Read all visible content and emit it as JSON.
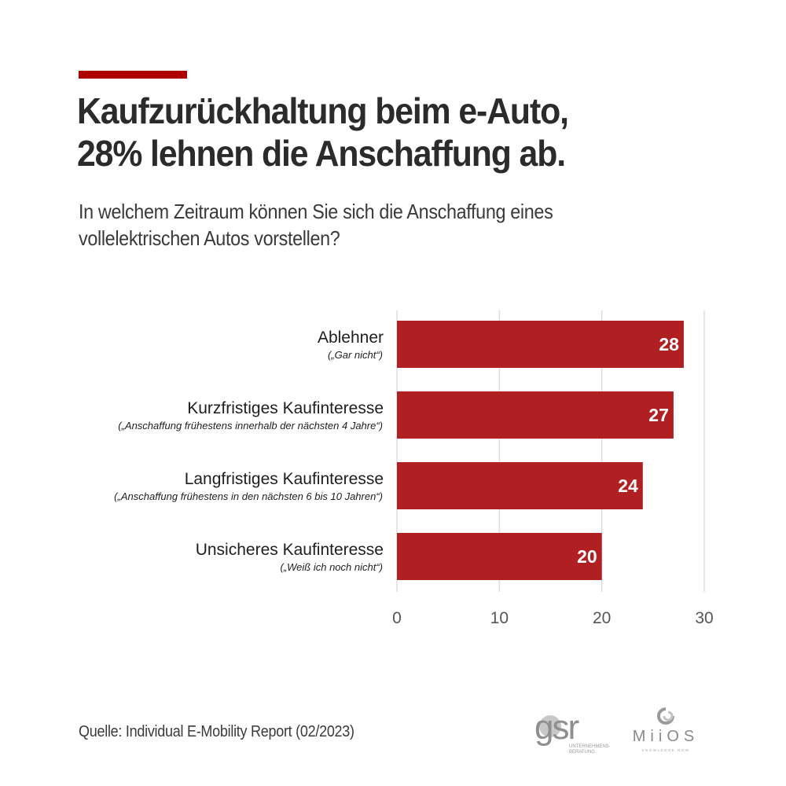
{
  "header": {
    "title_line1": "Kaufzurückhaltung beim e-Auto,",
    "title_line2": "28% lehnen die Anschaffung ab.",
    "subtitle_line1": "In welchem Zeitraum können Sie sich die Anschaffung eines",
    "subtitle_line2": "vollelektrischen Autos vorstellen?",
    "accent_color": "#ad0000"
  },
  "chart_data": {
    "type": "bar",
    "orientation": "horizontal",
    "title": "Kaufzurückhaltung beim e-Auto, 28% lehnen die Anschaffung ab.",
    "subtitle": "In welchem Zeitraum können Sie sich die Anschaffung eines vollelektrischen Autos vorstellen?",
    "categories": [
      "Ablehner",
      "Kurzfristiges Kaufinteresse",
      "Langfristiges Kaufinteresse",
      "Unsicheres Kaufinteresse"
    ],
    "category_notes": [
      "(„Gar nicht“)",
      "(„Anschaffung frühestens innerhalb der nächsten 4 Jahre“)",
      "(„Anschaffung frühestens in den nächsten 6 bis 10 Jahren“)",
      "(„Weiß ich noch nicht“)"
    ],
    "values": [
      28,
      27,
      24,
      20
    ],
    "data_labels": [
      "28",
      "27",
      "24",
      "20"
    ],
    "xlabel": "",
    "ylabel": "",
    "xlim": [
      0,
      30
    ],
    "xticks": [
      0,
      10,
      20,
      30
    ],
    "xtick_labels": [
      "0",
      "10",
      "20",
      "30"
    ],
    "grid": true,
    "legend": "none",
    "bar_color": "#b01f21",
    "grid_color": "#dddddd"
  },
  "footer": {
    "source": "Quelle: Individual E-Mobility Report (02/2023)",
    "logos": [
      {
        "name": "gsr",
        "text": "gsr",
        "tagline_line1": "UNTERNEHMENS-",
        "tagline_line2": "BERATUNG"
      },
      {
        "name": "miios",
        "text": "MiiOS",
        "tagline": "KNOWLEDGE.NOW"
      }
    ]
  }
}
